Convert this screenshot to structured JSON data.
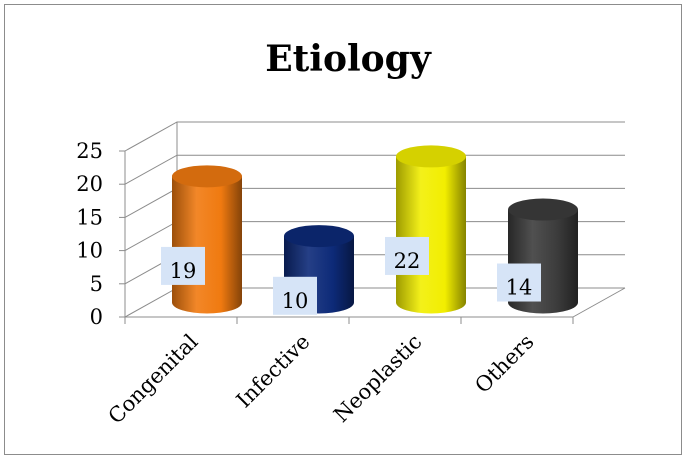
{
  "chart_data": {
    "type": "bar",
    "title": "Etiology",
    "categories": [
      "Congenital",
      "Infective",
      "Neoplastic",
      "Others"
    ],
    "values": [
      19,
      10,
      22,
      14
    ],
    "ylim": [
      0,
      25
    ],
    "yticks": [
      0,
      5,
      10,
      15,
      20,
      25
    ],
    "grid": true,
    "legend": "none",
    "bar_shape": "3d-cylinder",
    "colors": [
      "#f07a10",
      "#0d2a78",
      "#f2ee00",
      "#3c3c3c"
    ],
    "data_label_box_color": "#d6e4f7"
  }
}
